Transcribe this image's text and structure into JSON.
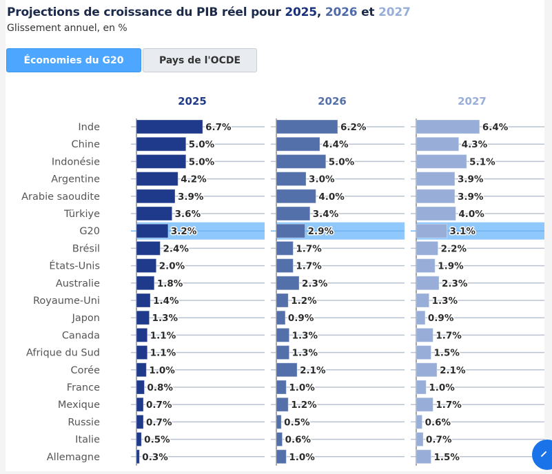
{
  "header": {
    "title_prefix": "Projections de croissance du PIB réel pour",
    "title_year1": "2025",
    "title_sep1": ", ",
    "title_year2": "2026",
    "title_sep2": " et ",
    "title_year3": "2027",
    "subtitle": "Glissement annuel, en %"
  },
  "tabs": [
    {
      "label": "Économies du G20",
      "active": true
    },
    {
      "label": "Pays de l'OCDE",
      "active": false
    }
  ],
  "colors": {
    "y2025": "#1f3a8a",
    "y2026": "#5470ab",
    "y2027": "#98aed8",
    "highlight": "#8ec8fc",
    "gridline": "#b8c3d1",
    "axis": "#888888",
    "fab": "#1a73e8"
  },
  "chart_data": {
    "type": "bar",
    "orientation": "horizontal",
    "title": "Projections de croissance du PIB réel pour 2025, 2026 et 2027",
    "subtitle": "Glissement annuel, en %",
    "unit": "%",
    "highlighted_category": "G20",
    "categories": [
      "Inde",
      "Chine",
      "Indonésie",
      "Argentine",
      "Arabie saoudite",
      "Türkiye",
      "G20",
      "Brésil",
      "États-Unis",
      "Australie",
      "Royaume-Uni",
      "Japon",
      "Canada",
      "Afrique du Sud",
      "Corée",
      "France",
      "Mexique",
      "Russie",
      "Italie",
      "Allemagne"
    ],
    "series": [
      {
        "name": "2025",
        "values": [
          6.7,
          5.0,
          5.0,
          4.2,
          3.9,
          3.6,
          3.2,
          2.4,
          2.0,
          1.8,
          1.4,
          1.3,
          1.1,
          1.1,
          1.0,
          0.8,
          0.7,
          0.7,
          0.5,
          0.3
        ]
      },
      {
        "name": "2026",
        "values": [
          6.2,
          4.4,
          5.0,
          3.0,
          4.0,
          3.4,
          2.9,
          1.7,
          1.7,
          2.3,
          1.2,
          0.9,
          1.3,
          1.3,
          2.1,
          1.0,
          1.2,
          0.5,
          0.6,
          1.0
        ]
      },
      {
        "name": "2027",
        "values": [
          6.4,
          4.3,
          5.1,
          3.9,
          3.9,
          4.0,
          3.1,
          2.2,
          1.9,
          2.3,
          1.3,
          0.9,
          1.7,
          1.5,
          2.1,
          1.0,
          1.7,
          0.6,
          0.7,
          1.5
        ]
      }
    ],
    "xlim": [
      0,
      13
    ],
    "grid": true,
    "legend": "none (year headers above columns)"
  }
}
